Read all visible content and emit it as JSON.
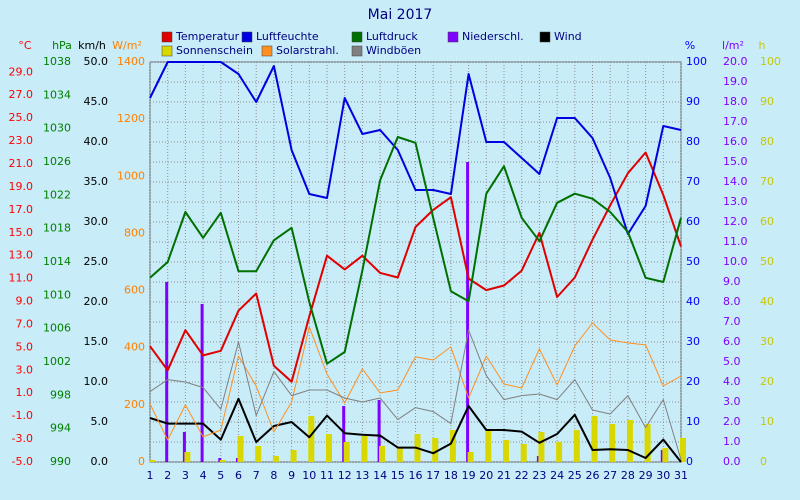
{
  "chart_data": {
    "type": "line",
    "title": "Mai 2017",
    "categories": [
      "1",
      "2",
      "3",
      "4",
      "5",
      "6",
      "7",
      "8",
      "9",
      "10",
      "11",
      "12",
      "13",
      "14",
      "15",
      "16",
      "17",
      "18",
      "19",
      "20",
      "21",
      "22",
      "23",
      "24",
      "25",
      "26",
      "27",
      "28",
      "29",
      "30",
      "31"
    ],
    "grid": true,
    "axes": [
      {
        "label": "°C",
        "color": "#ff0000",
        "side": "left",
        "lim": [
          -5,
          29.9
        ],
        "ticks": [
          {
            "value": -5,
            "label": "-5.0"
          },
          {
            "value": -3,
            "label": "-3.0"
          },
          {
            "value": -1,
            "label": "-1.0"
          },
          {
            "value": 1,
            "label": "1.0"
          },
          {
            "value": 3,
            "label": "3.0"
          },
          {
            "value": 5,
            "label": "5.0"
          },
          {
            "value": 7,
            "label": "7.0"
          },
          {
            "value": 9,
            "label": "9.0"
          },
          {
            "value": 11,
            "label": "11.0"
          },
          {
            "value": 13,
            "label": "13.0"
          },
          {
            "value": 15,
            "label": "15.0"
          },
          {
            "value": 17,
            "label": "17.0"
          },
          {
            "value": 19,
            "label": "19.0"
          },
          {
            "value": 21,
            "label": "21.0"
          },
          {
            "value": 23,
            "label": "23.0"
          },
          {
            "value": 25,
            "label": "25.0"
          },
          {
            "value": 27,
            "label": "27.0"
          },
          {
            "value": 29,
            "label": "29.0"
          }
        ]
      },
      {
        "label": "hPa",
        "color": "#008000",
        "side": "left",
        "lim": [
          990,
          1038
        ],
        "ticks": [
          990,
          994,
          998,
          1002,
          1006,
          1010,
          1014,
          1018,
          1022,
          1026,
          1030,
          1034,
          1038
        ]
      },
      {
        "label": "km/h",
        "color": "#000000",
        "side": "left",
        "lim": [
          0,
          50
        ],
        "ticks": [
          {
            "value": 0,
            "label": "0.0"
          },
          {
            "value": 5,
            "label": "5.0"
          },
          {
            "value": 10,
            "label": "10.0"
          },
          {
            "value": 15,
            "label": "15.0"
          },
          {
            "value": 20,
            "label": "20.0"
          },
          {
            "value": 25,
            "label": "25.0"
          },
          {
            "value": 30,
            "label": "30.0"
          },
          {
            "value": 35,
            "label": "35.0"
          },
          {
            "value": 40,
            "label": "40.0"
          },
          {
            "value": 45,
            "label": "45.0"
          },
          {
            "value": 50,
            "label": "50.0"
          }
        ]
      },
      {
        "label": "W/m²",
        "color": "#ff8000",
        "side": "left",
        "lim": [
          0,
          1400
        ],
        "ticks": [
          0,
          200,
          400,
          600,
          800,
          1000,
          1200,
          1400
        ]
      },
      {
        "label": "%",
        "color": "#0000ff",
        "side": "right",
        "lim": [
          0,
          100
        ],
        "ticks": [
          0,
          10,
          20,
          30,
          40,
          50,
          60,
          70,
          80,
          90,
          100
        ]
      },
      {
        "label": "l/m²",
        "color": "#8000ff",
        "side": "right",
        "lim": [
          0,
          20
        ],
        "ticks": [
          {
            "value": 0,
            "label": "0.0"
          },
          {
            "value": 1,
            "label": "1.0"
          },
          {
            "value": 2,
            "label": "2.0"
          },
          {
            "value": 3,
            "label": "3.0"
          },
          {
            "value": 4,
            "label": "4.0"
          },
          {
            "value": 5,
            "label": "5.0"
          },
          {
            "value": 6,
            "label": "6.0"
          },
          {
            "value": 7,
            "label": "7.0"
          },
          {
            "value": 8,
            "label": "8.0"
          },
          {
            "value": 9,
            "label": "9.0"
          },
          {
            "value": 10,
            "label": "10.0"
          },
          {
            "value": 11,
            "label": "11.0"
          },
          {
            "value": 12,
            "label": "12.0"
          },
          {
            "value": 13,
            "label": "13.0"
          },
          {
            "value": 14,
            "label": "14.0"
          },
          {
            "value": 15,
            "label": "15.0"
          },
          {
            "value": 16,
            "label": "16.0"
          },
          {
            "value": 17,
            "label": "17.0"
          },
          {
            "value": 18,
            "label": "18.0"
          },
          {
            "value": 19,
            "label": "19.0"
          },
          {
            "value": 20,
            "label": "20.0"
          }
        ]
      },
      {
        "label": "h",
        "color": "#c8c800",
        "side": "right",
        "lim": [
          0,
          100
        ],
        "ticks": [
          0,
          10,
          20,
          30,
          40,
          50,
          60,
          70,
          80,
          90,
          100
        ]
      }
    ],
    "series": [
      {
        "name": "Temperatur",
        "color": "#e00000",
        "mark": "line",
        "linestyle": "bold",
        "axis": "°C",
        "values": [
          5.1,
          3.0,
          6.5,
          4.3,
          4.7,
          8.2,
          9.7,
          3.4,
          2.0,
          7.7,
          13.0,
          11.8,
          13.0,
          11.5,
          11.1,
          15.5,
          17.0,
          18.1,
          11.0,
          10.0,
          10.4,
          11.7,
          15.0,
          9.4,
          11.1,
          14.4,
          17.4,
          20.2,
          22.0,
          18.3,
          13.8
        ]
      },
      {
        "name": "Luftfeuchte",
        "color": "#0000e0",
        "mark": "line",
        "linestyle": "bold",
        "axis": "%",
        "values": [
          91,
          100,
          100,
          100,
          100,
          97,
          90,
          99,
          78,
          67,
          66,
          91,
          82,
          83,
          78,
          68,
          68,
          67,
          97,
          80,
          80,
          76,
          72,
          86,
          86,
          81,
          71,
          57,
          64,
          84,
          83
        ]
      },
      {
        "name": "Luftdruck",
        "color": "#007000",
        "mark": "line",
        "linestyle": "bold",
        "axis": "hPa",
        "values": [
          1012.1,
          1014.0,
          1020.0,
          1016.9,
          1019.9,
          1012.9,
          1012.9,
          1016.6,
          1018.1,
          1009.2,
          1001.8,
          1003.2,
          1013.0,
          1023.8,
          1029.0,
          1028.3,
          1019.3,
          1010.5,
          1009.3,
          1022.2,
          1025.5,
          1019.3,
          1016.5,
          1021.1,
          1022.2,
          1021.6,
          1020.0,
          1017.6,
          1012.1,
          1011.6,
          1019.3
        ]
      },
      {
        "name": "Niederschl.",
        "color": "#8000ff",
        "mark": "bar",
        "axis": "l/m²",
        "values": [
          0,
          9.0,
          1.5,
          7.9,
          0.2,
          0.2,
          0,
          0,
          0,
          0,
          0,
          2.8,
          0,
          3.1,
          0,
          0,
          0,
          0,
          15.0,
          0,
          0,
          0,
          0.3,
          0,
          0,
          0,
          0,
          0,
          0,
          0.6,
          0
        ]
      },
      {
        "name": "Wind",
        "color": "#000000",
        "mark": "line",
        "linestyle": "bold",
        "axis": "km/h",
        "values": [
          5.5,
          4.8,
          4.8,
          4.8,
          2.8,
          7.9,
          2.5,
          4.5,
          5.0,
          3.1,
          5.8,
          3.6,
          3.4,
          3.3,
          1.8,
          1.8,
          1.1,
          2.3,
          7.0,
          4.0,
          4.0,
          3.8,
          2.4,
          3.5,
          5.9,
          1.5,
          1.6,
          1.5,
          0.5,
          2.8,
          0
        ]
      },
      {
        "name": "Sonnenschein",
        "color": "#d8d800",
        "mark": "bar",
        "axis": "h",
        "values": [
          0.5,
          0,
          2.5,
          0,
          0.5,
          6.5,
          4.0,
          1.5,
          3.0,
          11.5,
          7.0,
          5.0,
          6.5,
          4.0,
          3.5,
          7.0,
          6.0,
          8.0,
          2.5,
          8.0,
          5.5,
          4.5,
          7.5,
          5.0,
          8.0,
          11.5,
          9.5,
          10.5,
          9.5,
          3.5,
          6.0
        ]
      },
      {
        "name": "Solarstrahl.",
        "color": "#ff9020",
        "mark": "line",
        "linestyle": "thin",
        "axis": "W/m²",
        "values": [
          203,
          77,
          200,
          88,
          112,
          371,
          266,
          105,
          210,
          473,
          308,
          207,
          326,
          242,
          252,
          368,
          357,
          403,
          224,
          371,
          273,
          259,
          396,
          270,
          406,
          487,
          427,
          417,
          410,
          266,
          301
        ]
      },
      {
        "name": "Windböen",
        "color": "#808080",
        "mark": "line",
        "linestyle": "thin",
        "axis": "km/h",
        "values": [
          8.8,
          10.3,
          10.0,
          9.3,
          6.6,
          15.0,
          5.8,
          11.3,
          8.3,
          9.0,
          9.0,
          8.0,
          7.5,
          8.0,
          5.3,
          6.8,
          6.3,
          4.8,
          16.5,
          10.8,
          7.8,
          8.3,
          8.5,
          7.8,
          10.3,
          6.5,
          6.0,
          8.3,
          4.3,
          7.8,
          0.3
        ]
      }
    ]
  }
}
